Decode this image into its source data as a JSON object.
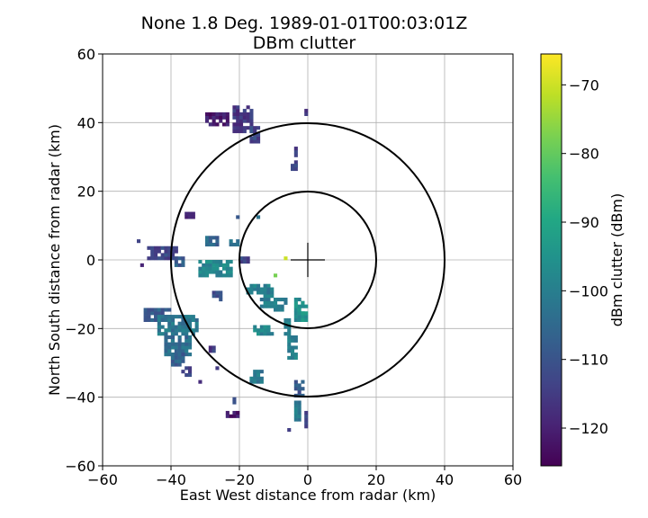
{
  "chart_data": {
    "type": "heatmap",
    "title_line1": "None 1.8 Deg. 1989-01-01T00:03:01Z",
    "title_line2": "DBm clutter",
    "xlabel": "East West distance from radar (km)",
    "ylabel": "North South distance from radar (km)",
    "xlim": [
      -60,
      60
    ],
    "ylim": [
      -60,
      60
    ],
    "xticks": [
      -60,
      -40,
      -20,
      0,
      20,
      40,
      60
    ],
    "yticks": [
      -60,
      -40,
      -20,
      0,
      20,
      40,
      60
    ],
    "xtick_labels": [
      "−60",
      "−40",
      "−20",
      "0",
      "20",
      "40",
      "60"
    ],
    "ytick_labels": [
      "−60",
      "−40",
      "−20",
      "0",
      "20",
      "40",
      "60"
    ],
    "grid": true,
    "range_rings_km": [
      20,
      40
    ],
    "center_cross_km": 5,
    "colorbar": {
      "label": "dBm clutter (dBm)",
      "colormap": "viridis",
      "min": -125.5,
      "max": -65.5,
      "ticks": [
        -70,
        -80,
        -90,
        -100,
        -110,
        -120
      ],
      "tick_labels": [
        "−70",
        "−80",
        "−90",
        "−100",
        "−110",
        "−120"
      ]
    },
    "clutter_regions": [
      {
        "x": [
          -30,
          -23
        ],
        "y": [
          39,
          43
        ],
        "value": -121
      },
      {
        "x": [
          -22,
          -16
        ],
        "y": [
          37,
          45
        ],
        "value": -116
      },
      {
        "x": [
          -17,
          -14
        ],
        "y": [
          34,
          39
        ],
        "value": -113
      },
      {
        "x": [
          -1,
          0
        ],
        "y": [
          42,
          46
        ],
        "value": -118
      },
      {
        "x": [
          -4,
          -3
        ],
        "y": [
          27,
          33
        ],
        "value": -115
      },
      {
        "x": [
          -5,
          -3
        ],
        "y": [
          26,
          28
        ],
        "value": -112
      },
      {
        "x": [
          -42,
          -41
        ],
        "y": [
          20,
          21
        ],
        "value": -118
      },
      {
        "x": [
          -36,
          -33
        ],
        "y": [
          12,
          14
        ],
        "value": -117
      },
      {
        "x": [
          -21,
          -20
        ],
        "y": [
          12,
          13
        ],
        "value": -112
      },
      {
        "x": [
          -15,
          -14
        ],
        "y": [
          12,
          13
        ],
        "value": -104
      },
      {
        "x": [
          -50,
          -49
        ],
        "y": [
          5,
          6
        ],
        "value": -113
      },
      {
        "x": [
          -47,
          -38
        ],
        "y": [
          0,
          4
        ],
        "value": -113
      },
      {
        "x": [
          -40,
          -36
        ],
        "y": [
          -2,
          1
        ],
        "value": -108
      },
      {
        "x": [
          -49,
          -48
        ],
        "y": [
          -2,
          -1
        ],
        "value": -122
      },
      {
        "x": [
          -30,
          -26
        ],
        "y": [
          4,
          7
        ],
        "value": -106
      },
      {
        "x": [
          -23,
          -20
        ],
        "y": [
          4,
          6
        ],
        "value": -104
      },
      {
        "x": [
          -32,
          -22
        ],
        "y": [
          -5,
          0
        ],
        "value": -98
      },
      {
        "x": [
          -20,
          -17
        ],
        "y": [
          -1,
          1
        ],
        "value": -112
      },
      {
        "x": [
          -28,
          -25
        ],
        "y": [
          -12,
          -9
        ],
        "value": -110
      },
      {
        "x": [
          -18,
          -11
        ],
        "y": [
          -10,
          -7
        ],
        "value": -100
      },
      {
        "x": [
          -14,
          -10
        ],
        "y": [
          -14,
          -8
        ],
        "value": -101
      },
      {
        "x": [
          -10,
          -6
        ],
        "y": [
          -15,
          -11
        ],
        "value": -99
      },
      {
        "x": [
          -4,
          -1
        ],
        "y": [
          -18,
          -11
        ],
        "value": -96
      },
      {
        "x": [
          -2,
          0
        ],
        "y": [
          -18,
          -12
        ],
        "value": -94
      },
      {
        "x": [
          -16,
          -10
        ],
        "y": [
          -22,
          -19
        ],
        "value": -98
      },
      {
        "x": [
          -7,
          -5
        ],
        "y": [
          -22,
          -17
        ],
        "value": -100
      },
      {
        "x": [
          -48,
          -40
        ],
        "y": [
          -18,
          -14
        ],
        "value": -108
      },
      {
        "x": [
          -44,
          -32
        ],
        "y": [
          -22,
          -16
        ],
        "value": -102
      },
      {
        "x": [
          -42,
          -34
        ],
        "y": [
          -28,
          -22
        ],
        "value": -104
      },
      {
        "x": [
          -40,
          -36
        ],
        "y": [
          -31,
          -27
        ],
        "value": -107
      },
      {
        "x": [
          -37,
          -34
        ],
        "y": [
          -34,
          -31
        ],
        "value": -112
      },
      {
        "x": [
          -29,
          -27
        ],
        "y": [
          -27,
          -25
        ],
        "value": -115
      },
      {
        "x": [
          -27,
          -26
        ],
        "y": [
          -32,
          -31
        ],
        "value": -119
      },
      {
        "x": [
          -32,
          -31
        ],
        "y": [
          -36,
          -35
        ],
        "value": -120
      },
      {
        "x": [
          -6,
          -3
        ],
        "y": [
          -29,
          -22
        ],
        "value": -99
      },
      {
        "x": [
          -17,
          -13
        ],
        "y": [
          -36,
          -32
        ],
        "value": -101
      },
      {
        "x": [
          -21,
          -20
        ],
        "y": [
          -39,
          -37
        ],
        "value": -108
      },
      {
        "x": [
          -24,
          -20
        ],
        "y": [
          -46,
          -44
        ],
        "value": -122
      },
      {
        "x": [
          -22,
          -21
        ],
        "y": [
          -42,
          -40
        ],
        "value": -112
      },
      {
        "x": [
          -4,
          -1
        ],
        "y": [
          -40,
          -35
        ],
        "value": -109
      },
      {
        "x": [
          -4,
          -2
        ],
        "y": [
          -47,
          -40
        ],
        "value": -100
      },
      {
        "x": [
          -1,
          0
        ],
        "y": [
          -49,
          -44
        ],
        "value": -112
      },
      {
        "x": [
          -7,
          -5
        ],
        "y": [
          -50,
          -49
        ],
        "value": -117
      },
      {
        "x": [
          -7,
          -5
        ],
        "y": [
          0,
          1
        ],
        "value": -72
      },
      {
        "x": [
          -10,
          -9
        ],
        "y": [
          -5,
          -4
        ],
        "value": -78
      }
    ]
  }
}
